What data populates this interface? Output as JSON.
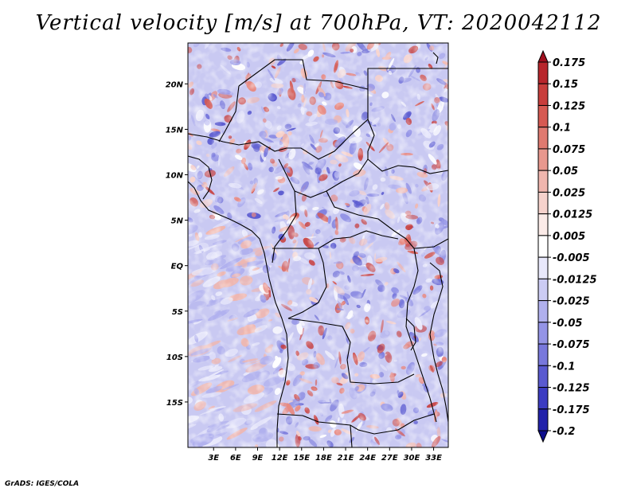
{
  "title": "Vertical velocity [m/s] at 700hPa, VT: 2020042112",
  "credit": "GrADS: IGES/COLA",
  "map": {
    "lat_range": [
      -20,
      24.5
    ],
    "lon_range": [
      -0.5,
      35
    ],
    "y_ticks": [
      "20N",
      "15N",
      "10N",
      "5N",
      "EQ",
      "5S",
      "10S",
      "15S"
    ],
    "y_tick_values": [
      20,
      15,
      10,
      5,
      0,
      -5,
      -10,
      -15
    ],
    "x_ticks": [
      "3E",
      "6E",
      "9E",
      "12E",
      "15E",
      "18E",
      "21E",
      "24E",
      "27E",
      "30E",
      "33E"
    ],
    "x_tick_values": [
      3,
      6,
      9,
      12,
      15,
      18,
      21,
      24,
      27,
      30,
      33
    ]
  },
  "colorbar": {
    "labels": [
      "0.175",
      "0.15",
      "0.125",
      "0.1",
      "0.075",
      "0.05",
      "0.025",
      "0.0125",
      "0.005",
      "-0.005",
      "-0.0125",
      "-0.025",
      "-0.05",
      "-0.075",
      "-0.1",
      "-0.125",
      "-0.175",
      "-0.2"
    ],
    "colors": [
      "#a0101e",
      "#b8262c",
      "#c83e3c",
      "#d65a52",
      "#e07a70",
      "#e8988e",
      "#f0b6ae",
      "#f6d2cc",
      "#fbebe8",
      "#ffffff",
      "#e8e8fb",
      "#ccccf4",
      "#b0b0ee",
      "#9494e6",
      "#7878dc",
      "#5a5ad0",
      "#3c3cc2",
      "#2222aa",
      "#0e0e8c"
    ]
  }
}
